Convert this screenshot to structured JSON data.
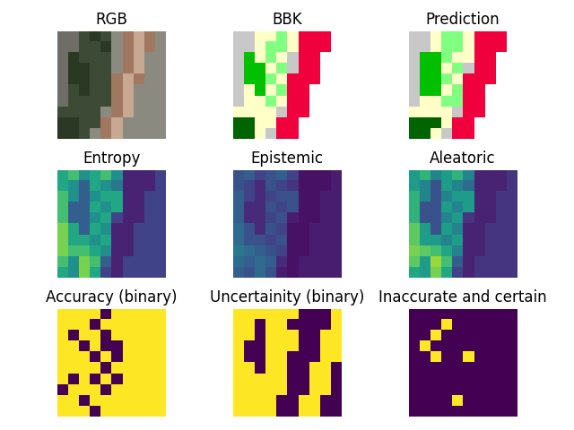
{
  "chart_data": [
    {
      "type": "image",
      "title": "RGB",
      "tick_labels": false,
      "colors": [
        "#3d4a35",
        "#8a8a80",
        "#a07860",
        "#2a3824",
        "#6e6e66",
        "#c8a890"
      ],
      "cells": [
        [
          4,
          4,
          0,
          3,
          0,
          1,
          2,
          5,
          2,
          1
        ],
        [
          4,
          4,
          0,
          0,
          3,
          1,
          2,
          5,
          2,
          1
        ],
        [
          4,
          3,
          0,
          0,
          0,
          1,
          2,
          5,
          1,
          1
        ],
        [
          4,
          3,
          3,
          0,
          0,
          1,
          2,
          5,
          1,
          1
        ],
        [
          4,
          3,
          3,
          0,
          0,
          2,
          5,
          2,
          1,
          1
        ],
        [
          4,
          0,
          3,
          0,
          0,
          2,
          5,
          1,
          1,
          1
        ],
        [
          4,
          0,
          0,
          0,
          0,
          2,
          5,
          1,
          1,
          1
        ],
        [
          0,
          0,
          0,
          0,
          1,
          2,
          5,
          1,
          1,
          1
        ],
        [
          3,
          3,
          0,
          0,
          2,
          5,
          1,
          1,
          1,
          1
        ],
        [
          3,
          3,
          0,
          1,
          2,
          5,
          1,
          1,
          1,
          1
        ]
      ]
    },
    {
      "type": "image",
      "title": "BBK",
      "tick_labels": false,
      "colors": [
        "#ffffc8",
        "#c8c8c8",
        "#f0003c",
        "#80ff80",
        "#00c000",
        "#006400",
        "#ffffff"
      ],
      "cells": [
        [
          1,
          1,
          0,
          0,
          3,
          0,
          2,
          2,
          2,
          6
        ],
        [
          1,
          1,
          0,
          3,
          3,
          0,
          2,
          2,
          2,
          6
        ],
        [
          1,
          4,
          0,
          3,
          0,
          1,
          2,
          2,
          6,
          6
        ],
        [
          1,
          4,
          4,
          0,
          3,
          1,
          2,
          2,
          6,
          6
        ],
        [
          1,
          4,
          4,
          3,
          0,
          2,
          2,
          2,
          6,
          6
        ],
        [
          1,
          0,
          4,
          0,
          3,
          2,
          2,
          6,
          6,
          6
        ],
        [
          1,
          0,
          0,
          3,
          0,
          2,
          2,
          6,
          6,
          6
        ],
        [
          0,
          0,
          0,
          0,
          1,
          2,
          2,
          6,
          6,
          6
        ],
        [
          5,
          5,
          0,
          0,
          2,
          2,
          6,
          6,
          6,
          6
        ],
        [
          5,
          5,
          0,
          1,
          2,
          2,
          6,
          6,
          6,
          6
        ]
      ]
    },
    {
      "type": "image",
      "title": "Prediction",
      "tick_labels": false,
      "colors": [
        "#ffffc8",
        "#c8c8c8",
        "#f0003c",
        "#80ff80",
        "#00c000",
        "#006400",
        "#ffffff"
      ],
      "cells": [
        [
          1,
          1,
          0,
          3,
          3,
          0,
          2,
          2,
          2,
          6
        ],
        [
          1,
          1,
          0,
          3,
          3,
          0,
          2,
          2,
          2,
          6
        ],
        [
          1,
          4,
          4,
          3,
          0,
          0,
          2,
          2,
          6,
          6
        ],
        [
          1,
          4,
          4,
          0,
          3,
          1,
          2,
          2,
          6,
          6
        ],
        [
          1,
          4,
          4,
          3,
          0,
          2,
          2,
          2,
          6,
          6
        ],
        [
          1,
          4,
          4,
          0,
          3,
          2,
          2,
          6,
          6,
          6
        ],
        [
          1,
          0,
          0,
          3,
          3,
          2,
          2,
          6,
          6,
          6
        ],
        [
          0,
          0,
          0,
          0,
          1,
          2,
          2,
          6,
          6,
          6
        ],
        [
          5,
          5,
          5,
          0,
          2,
          2,
          6,
          6,
          6,
          6
        ],
        [
          5,
          5,
          0,
          1,
          2,
          2,
          6,
          6,
          6,
          6
        ]
      ]
    },
    {
      "type": "image",
      "title": "Entropy",
      "tick_labels": false,
      "color_range": [
        0,
        1
      ],
      "cells": [
        [
          0.6,
          0.7,
          0.5,
          0.6,
          0.7,
          0.5,
          0.1,
          0.1,
          0.1,
          0.2
        ],
        [
          0.6,
          0.5,
          0.3,
          0.6,
          0.5,
          0.4,
          0.1,
          0.1,
          0.1,
          0.2
        ],
        [
          0.7,
          0.5,
          0.3,
          0.5,
          0.6,
          0.6,
          0.1,
          0.1,
          0.2,
          0.2
        ],
        [
          0.7,
          0.3,
          0.3,
          0.6,
          0.5,
          0.6,
          0.1,
          0.1,
          0.2,
          0.2
        ],
        [
          0.7,
          0.3,
          0.3,
          0.5,
          0.6,
          0.2,
          0.1,
          0.1,
          0.2,
          0.2
        ],
        [
          0.8,
          0.6,
          0.3,
          0.6,
          0.5,
          0.1,
          0.1,
          0.2,
          0.2,
          0.2
        ],
        [
          0.8,
          0.6,
          0.6,
          0.5,
          0.6,
          0.1,
          0.1,
          0.2,
          0.2,
          0.2
        ],
        [
          0.8,
          0.7,
          0.7,
          0.6,
          0.5,
          0.1,
          0.1,
          0.2,
          0.2,
          0.2
        ],
        [
          0.7,
          0.5,
          0.8,
          0.7,
          0.3,
          0.1,
          0.2,
          0.2,
          0.2,
          0.2
        ],
        [
          0.6,
          0.5,
          0.8,
          0.6,
          0.2,
          0.1,
          0.2,
          0.2,
          0.2,
          0.2
        ]
      ]
    },
    {
      "type": "image",
      "title": "Epistemic",
      "tick_labels": false,
      "color_range": [
        0,
        1
      ],
      "cells": [
        [
          0.25,
          0.3,
          0.2,
          0.25,
          0.3,
          0.2,
          0.05,
          0.05,
          0.05,
          0.08
        ],
        [
          0.25,
          0.2,
          0.12,
          0.25,
          0.2,
          0.15,
          0.05,
          0.05,
          0.05,
          0.08
        ],
        [
          0.3,
          0.2,
          0.12,
          0.2,
          0.25,
          0.25,
          0.05,
          0.05,
          0.08,
          0.08
        ],
        [
          0.3,
          0.12,
          0.12,
          0.25,
          0.2,
          0.25,
          0.05,
          0.05,
          0.08,
          0.08
        ],
        [
          0.3,
          0.12,
          0.12,
          0.2,
          0.25,
          0.08,
          0.05,
          0.05,
          0.08,
          0.08
        ],
        [
          0.35,
          0.25,
          0.12,
          0.25,
          0.2,
          0.05,
          0.05,
          0.08,
          0.08,
          0.08
        ],
        [
          0.35,
          0.25,
          0.25,
          0.2,
          0.25,
          0.05,
          0.05,
          0.08,
          0.08,
          0.08
        ],
        [
          0.4,
          0.35,
          0.3,
          0.25,
          0.2,
          0.05,
          0.05,
          0.08,
          0.08,
          0.08
        ],
        [
          0.35,
          0.3,
          0.35,
          0.3,
          0.12,
          0.05,
          0.08,
          0.08,
          0.08,
          0.08
        ],
        [
          0.3,
          0.25,
          0.35,
          0.25,
          0.08,
          0.05,
          0.08,
          0.08,
          0.08,
          0.08
        ]
      ]
    },
    {
      "type": "image",
      "title": "Aleatoric",
      "tick_labels": false,
      "color_range": [
        0,
        1
      ],
      "cells": [
        [
          0.55,
          0.65,
          0.45,
          0.55,
          0.65,
          0.45,
          0.1,
          0.1,
          0.1,
          0.15
        ],
        [
          0.55,
          0.45,
          0.25,
          0.55,
          0.45,
          0.35,
          0.1,
          0.1,
          0.1,
          0.15
        ],
        [
          0.65,
          0.45,
          0.25,
          0.45,
          0.55,
          0.55,
          0.1,
          0.1,
          0.15,
          0.15
        ],
        [
          0.65,
          0.25,
          0.25,
          0.55,
          0.45,
          0.55,
          0.1,
          0.1,
          0.15,
          0.15
        ],
        [
          0.65,
          0.25,
          0.25,
          0.45,
          0.55,
          0.15,
          0.1,
          0.1,
          0.15,
          0.15
        ],
        [
          0.75,
          0.55,
          0.25,
          0.55,
          0.45,
          0.1,
          0.1,
          0.15,
          0.15,
          0.15
        ],
        [
          0.75,
          0.55,
          0.55,
          0.45,
          0.55,
          0.1,
          0.1,
          0.15,
          0.15,
          0.15
        ],
        [
          0.8,
          0.75,
          0.7,
          0.6,
          0.45,
          0.1,
          0.1,
          0.15,
          0.15,
          0.15
        ],
        [
          0.75,
          0.55,
          0.85,
          0.7,
          0.3,
          0.1,
          0.15,
          0.15,
          0.15,
          0.15
        ],
        [
          0.6,
          0.55,
          0.8,
          0.6,
          0.2,
          0.1,
          0.15,
          0.15,
          0.15,
          0.15
        ]
      ]
    },
    {
      "type": "image",
      "title": "Accuracy (binary)",
      "tick_labels": false,
      "color_range": [
        0,
        1
      ],
      "cells": [
        [
          1,
          1,
          1,
          1,
          0,
          1,
          1,
          1,
          1,
          1
        ],
        [
          1,
          1,
          1,
          0,
          1,
          1,
          1,
          1,
          1,
          1
        ],
        [
          1,
          0,
          1,
          1,
          0,
          1,
          1,
          1,
          1,
          1
        ],
        [
          1,
          1,
          0,
          1,
          0,
          0,
          1,
          1,
          1,
          1
        ],
        [
          1,
          1,
          1,
          0,
          1,
          0,
          1,
          1,
          1,
          1
        ],
        [
          1,
          1,
          1,
          1,
          0,
          1,
          1,
          1,
          1,
          1
        ],
        [
          1,
          0,
          1,
          0,
          1,
          0,
          1,
          1,
          1,
          1
        ],
        [
          0,
          1,
          1,
          1,
          0,
          1,
          1,
          1,
          1,
          1
        ],
        [
          1,
          1,
          0,
          1,
          1,
          1,
          1,
          1,
          1,
          1
        ],
        [
          1,
          1,
          1,
          0,
          1,
          1,
          1,
          1,
          1,
          1
        ]
      ]
    },
    {
      "type": "image",
      "title": "Uncertainity (binary)",
      "tick_labels": false,
      "color_range": [
        0,
        1
      ],
      "cells": [
        [
          1,
          1,
          1,
          1,
          1,
          1,
          0,
          0,
          0,
          1
        ],
        [
          1,
          1,
          0,
          1,
          1,
          0,
          0,
          0,
          0,
          1
        ],
        [
          1,
          1,
          0,
          1,
          1,
          1,
          0,
          0,
          1,
          1
        ],
        [
          1,
          0,
          0,
          1,
          1,
          1,
          0,
          0,
          1,
          1
        ],
        [
          1,
          0,
          0,
          1,
          1,
          0,
          0,
          0,
          1,
          1
        ],
        [
          1,
          1,
          0,
          1,
          1,
          0,
          0,
          1,
          1,
          0
        ],
        [
          1,
          1,
          1,
          1,
          1,
          0,
          0,
          1,
          1,
          0
        ],
        [
          1,
          1,
          1,
          1,
          1,
          0,
          0,
          1,
          1,
          0
        ],
        [
          1,
          1,
          1,
          1,
          0,
          0,
          1,
          1,
          0,
          0
        ],
        [
          1,
          1,
          1,
          1,
          0,
          0,
          1,
          1,
          0,
          0
        ]
      ]
    },
    {
      "type": "image",
      "title": "Inaccurate and certain",
      "tick_labels": false,
      "color_range": [
        0,
        1
      ],
      "cells": [
        [
          0,
          0,
          0,
          0,
          0,
          0,
          0,
          0,
          0,
          0
        ],
        [
          0,
          0,
          0,
          1,
          0,
          0,
          0,
          0,
          0,
          0
        ],
        [
          0,
          0,
          1,
          0,
          0,
          0,
          0,
          0,
          0,
          0
        ],
        [
          0,
          1,
          0,
          0,
          0,
          0,
          0,
          0,
          0,
          0
        ],
        [
          0,
          0,
          1,
          0,
          0,
          1,
          0,
          0,
          0,
          0
        ],
        [
          0,
          0,
          0,
          0,
          0,
          0,
          0,
          0,
          0,
          0
        ],
        [
          0,
          0,
          0,
          0,
          0,
          0,
          0,
          0,
          0,
          0
        ],
        [
          0,
          0,
          0,
          0,
          0,
          0,
          0,
          0,
          0,
          0
        ],
        [
          0,
          0,
          0,
          0,
          1,
          0,
          0,
          0,
          0,
          0
        ],
        [
          0,
          0,
          0,
          0,
          0,
          0,
          0,
          0,
          0,
          0
        ]
      ]
    }
  ]
}
